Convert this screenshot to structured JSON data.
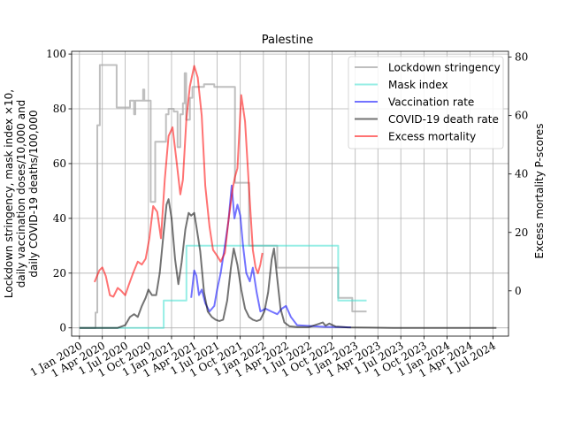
{
  "chart_data": {
    "type": "line",
    "title": "Palestine",
    "ylabel_left": "Lockdown stringency, mask index ×10, daily vaccination doses/10,000 and daily COVID-19 deaths/100,000",
    "ylabel_left_lines": [
      "Lockdown stringency, mask index ×10,",
      "daily vaccination doses/10,000 and",
      "daily COVID-19 deaths/100,000"
    ],
    "ylabel_right": "Excess mortality P-scores",
    "ylim_left": [
      -3,
      101
    ],
    "ylim_right": [
      -15.5,
      82
    ],
    "yticks_left": [
      0,
      20,
      40,
      60,
      80,
      100
    ],
    "yticks_right": [
      0,
      20,
      40,
      60,
      80
    ],
    "xticks": [
      "1 Jan 2020",
      "1 Apr 2020",
      "1 Jul 2020",
      "1 Oct 2020",
      "1 Jan 2021",
      "1 Apr 2021",
      "1 Jul 2021",
      "1 Oct 2021",
      "1 Jan 2022",
      "1 Apr 2022",
      "1 Jul 2022",
      "1 Oct 2022",
      "1 Jan 2023",
      "1 Apr 2023",
      "1 Jul 2023",
      "1 Oct 2023",
      "1 Jan 2024",
      "1 Apr 2024",
      "1 Jul 2024"
    ],
    "x_range": [
      "2019-12-01",
      "2024-09-01"
    ],
    "grid": true,
    "legend_position": "upper right",
    "series": [
      {
        "name": "Lockdown stringency",
        "color": "#a9a9a9",
        "axis": "left",
        "step": true,
        "points": [
          [
            "2020-01-01",
            0
          ],
          [
            "2020-02-20",
            0
          ],
          [
            "2020-03-05",
            5.6
          ],
          [
            "2020-03-12",
            74
          ],
          [
            "2020-03-22",
            96
          ],
          [
            "2020-05-28",
            80.5
          ],
          [
            "2020-07-20",
            83
          ],
          [
            "2020-08-05",
            78
          ],
          [
            "2020-08-10",
            83
          ],
          [
            "2020-09-10",
            87
          ],
          [
            "2020-09-15",
            83
          ],
          [
            "2020-10-10",
            46
          ],
          [
            "2020-10-28",
            68
          ],
          [
            "2020-12-10",
            78
          ],
          [
            "2020-12-20",
            80
          ],
          [
            "2021-01-10",
            79
          ],
          [
            "2021-01-25",
            66
          ],
          [
            "2021-02-05",
            78
          ],
          [
            "2021-02-15",
            82
          ],
          [
            "2021-02-22",
            93
          ],
          [
            "2021-02-28",
            76
          ],
          [
            "2021-03-15",
            84
          ],
          [
            "2021-03-25",
            88
          ],
          [
            "2021-05-10",
            89
          ],
          [
            "2021-06-20",
            88
          ],
          [
            "2021-09-10",
            53
          ],
          [
            "2021-11-05",
            30
          ],
          [
            "2022-02-25",
            22
          ],
          [
            "2022-10-25",
            11
          ],
          [
            "2022-12-20",
            6
          ],
          [
            "2023-02-15",
            6
          ]
        ]
      },
      {
        "name": "Mask index",
        "color": "#40e0d0",
        "axis": "left",
        "step": true,
        "points": [
          [
            "2020-01-01",
            0
          ],
          [
            "2020-11-20",
            0
          ],
          [
            "2020-12-01",
            10
          ],
          [
            "2021-03-01",
            30
          ],
          [
            "2022-10-25",
            10
          ],
          [
            "2023-02-15",
            10
          ]
        ]
      },
      {
        "name": "Vaccination rate",
        "color": "#0000ff",
        "axis": "left",
        "step": false,
        "points": [
          [
            "2021-03-20",
            11
          ],
          [
            "2021-04-01",
            21
          ],
          [
            "2021-04-10",
            19
          ],
          [
            "2021-04-20",
            12
          ],
          [
            "2021-05-01",
            14
          ],
          [
            "2021-05-15",
            9
          ],
          [
            "2021-06-01",
            6
          ],
          [
            "2021-06-20",
            8
          ],
          [
            "2021-07-01",
            14
          ],
          [
            "2021-07-15",
            20
          ],
          [
            "2021-08-01",
            30
          ],
          [
            "2021-08-15",
            39
          ],
          [
            "2021-08-28",
            52
          ],
          [
            "2021-09-08",
            40
          ],
          [
            "2021-09-20",
            45
          ],
          [
            "2021-10-01",
            41
          ],
          [
            "2021-10-12",
            30
          ],
          [
            "2021-10-25",
            20
          ],
          [
            "2021-11-08",
            17
          ],
          [
            "2021-11-20",
            22
          ],
          [
            "2021-12-05",
            13
          ],
          [
            "2021-12-20",
            6
          ],
          [
            "2022-01-10",
            7
          ],
          [
            "2022-02-01",
            6
          ],
          [
            "2022-02-25",
            5
          ],
          [
            "2022-03-15",
            7
          ],
          [
            "2022-04-01",
            8
          ],
          [
            "2022-04-20",
            4
          ],
          [
            "2022-05-15",
            1
          ],
          [
            "2022-07-01",
            0.7
          ],
          [
            "2022-09-01",
            0.4
          ],
          [
            "2022-11-01",
            0.3
          ],
          [
            "2022-12-15",
            0.2
          ]
        ]
      },
      {
        "name": "COVID-19 death rate",
        "color": "#000000",
        "axis": "left",
        "step": false,
        "points": [
          [
            "2020-01-01",
            0
          ],
          [
            "2020-06-01",
            0
          ],
          [
            "2020-07-01",
            1
          ],
          [
            "2020-07-20",
            4
          ],
          [
            "2020-08-05",
            5
          ],
          [
            "2020-08-20",
            4
          ],
          [
            "2020-09-05",
            8
          ],
          [
            "2020-09-20",
            11
          ],
          [
            "2020-10-01",
            14
          ],
          [
            "2020-10-15",
            12
          ],
          [
            "2020-11-01",
            12
          ],
          [
            "2020-11-15",
            20
          ],
          [
            "2020-12-01",
            35
          ],
          [
            "2020-12-12",
            45
          ],
          [
            "2020-12-20",
            47
          ],
          [
            "2021-01-01",
            40
          ],
          [
            "2021-01-15",
            25
          ],
          [
            "2021-01-28",
            16
          ],
          [
            "2021-02-10",
            24
          ],
          [
            "2021-02-25",
            36
          ],
          [
            "2021-03-10",
            42
          ],
          [
            "2021-03-20",
            41
          ],
          [
            "2021-04-01",
            42
          ],
          [
            "2021-04-10",
            37
          ],
          [
            "2021-04-25",
            28
          ],
          [
            "2021-05-10",
            13
          ],
          [
            "2021-05-25",
            6
          ],
          [
            "2021-06-10",
            4
          ],
          [
            "2021-06-25",
            3
          ],
          [
            "2021-07-10",
            2.5
          ],
          [
            "2021-07-25",
            3
          ],
          [
            "2021-08-10",
            10
          ],
          [
            "2021-08-25",
            22
          ],
          [
            "2021-09-05",
            29
          ],
          [
            "2021-09-20",
            23
          ],
          [
            "2021-10-05",
            14
          ],
          [
            "2021-10-20",
            7
          ],
          [
            "2021-11-05",
            4
          ],
          [
            "2021-11-20",
            3
          ],
          [
            "2021-12-05",
            2.5
          ],
          [
            "2021-12-20",
            3
          ],
          [
            "2022-01-05",
            6
          ],
          [
            "2022-01-20",
            13
          ],
          [
            "2022-02-03",
            25
          ],
          [
            "2022-02-12",
            29
          ],
          [
            "2022-02-25",
            18
          ],
          [
            "2022-03-10",
            7
          ],
          [
            "2022-03-25",
            2
          ],
          [
            "2022-04-15",
            0.6
          ],
          [
            "2022-05-15",
            0.3
          ],
          [
            "2022-07-01",
            0.3
          ],
          [
            "2022-08-10",
            1.5
          ],
          [
            "2022-08-25",
            2
          ],
          [
            "2022-09-05",
            0.8
          ],
          [
            "2022-09-20",
            1.6
          ],
          [
            "2022-10-15",
            0.5
          ],
          [
            "2022-12-01",
            0.2
          ],
          [
            "2023-03-01",
            0.1
          ],
          [
            "2023-06-01",
            0
          ],
          [
            "2024-07-15",
            0
          ]
        ]
      },
      {
        "name": "Excess mortality",
        "color": "#ff0000",
        "axis": "right",
        "step": false,
        "points": [
          [
            "2020-03-01",
            3
          ],
          [
            "2020-03-20",
            7
          ],
          [
            "2020-04-01",
            8
          ],
          [
            "2020-04-15",
            5
          ],
          [
            "2020-05-01",
            -1.5
          ],
          [
            "2020-05-15",
            -2
          ],
          [
            "2020-06-01",
            1
          ],
          [
            "2020-06-15",
            0
          ],
          [
            "2020-07-01",
            -1.5
          ],
          [
            "2020-07-15",
            2
          ],
          [
            "2020-08-01",
            6
          ],
          [
            "2020-08-20",
            10
          ],
          [
            "2020-09-05",
            9
          ],
          [
            "2020-09-20",
            11
          ],
          [
            "2020-10-05",
            18
          ],
          [
            "2020-10-20",
            29
          ],
          [
            "2020-11-05",
            27
          ],
          [
            "2020-11-20",
            18
          ],
          [
            "2020-12-05",
            38
          ],
          [
            "2020-12-20",
            53
          ],
          [
            "2021-01-05",
            56
          ],
          [
            "2021-01-20",
            45
          ],
          [
            "2021-02-05",
            33
          ],
          [
            "2021-02-15",
            38
          ],
          [
            "2021-03-01",
            59
          ],
          [
            "2021-03-15",
            70
          ],
          [
            "2021-04-01",
            77
          ],
          [
            "2021-04-15",
            73
          ],
          [
            "2021-05-01",
            60
          ],
          [
            "2021-05-15",
            36
          ],
          [
            "2021-06-01",
            22
          ],
          [
            "2021-06-15",
            14
          ],
          [
            "2021-07-01",
            12
          ],
          [
            "2021-07-15",
            10
          ],
          [
            "2021-08-01",
            13
          ],
          [
            "2021-08-15",
            24
          ],
          [
            "2021-09-01",
            35
          ],
          [
            "2021-09-10",
            39
          ],
          [
            "2021-09-20",
            42
          ],
          [
            "2021-10-05",
            67
          ],
          [
            "2021-10-20",
            58
          ],
          [
            "2021-11-05",
            35
          ],
          [
            "2021-11-20",
            14
          ],
          [
            "2021-12-01",
            8
          ],
          [
            "2021-12-10",
            6
          ],
          [
            "2021-12-20",
            9
          ],
          [
            "2021-12-28",
            13
          ]
        ]
      }
    ]
  }
}
